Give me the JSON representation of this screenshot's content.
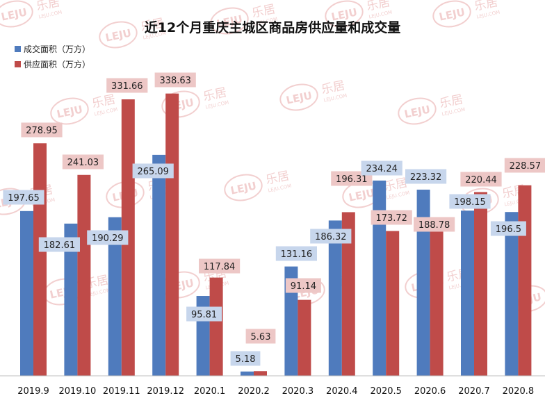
{
  "chart_data": {
    "type": "bar",
    "title": "近12个月重庆主城区商品房供应量和成交量",
    "categories": [
      "2019.9",
      "2019.10",
      "2019.11",
      "2019.12",
      "2020.1",
      "2020.2",
      "2020.3",
      "2020.4",
      "2020.5",
      "2020.6",
      "2020.7",
      "2020.8"
    ],
    "series": [
      {
        "name": "成交面积（万方）",
        "color": "#4F7BBD",
        "label_bg": "#C7D6EC",
        "values": [
          197.65,
          182.61,
          190.29,
          265.09,
          95.81,
          5.18,
          131.16,
          186.32,
          234.24,
          223.32,
          198.15,
          196.5
        ]
      },
      {
        "name": "供应面积（万方）",
        "color": "#BF4B49",
        "label_bg": "#EDC7C6",
        "values": [
          278.95,
          241.03,
          331.66,
          338.63,
          117.84,
          5.63,
          91.14,
          196.31,
          173.72,
          188.78,
          220.44,
          228.57
        ]
      }
    ],
    "xlabel": "",
    "ylabel": "",
    "ylim": [
      0,
      380
    ],
    "grid": false,
    "legend_position": "top-left",
    "watermark": {
      "logo_text": "LEJU",
      "brand_text": "乐居",
      "site_text": "LEJU.COM",
      "color": "#E8A8A8"
    }
  }
}
